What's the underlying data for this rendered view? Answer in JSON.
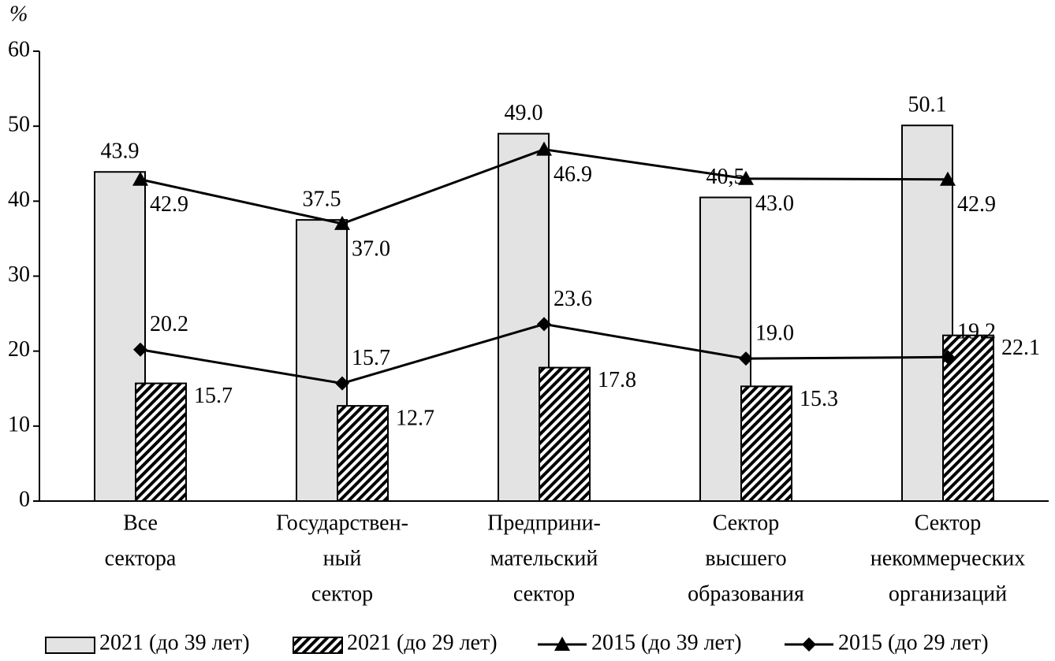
{
  "chart_data": {
    "type": "bar",
    "y_label": "%",
    "categories": [
      [
        "Все",
        "сектора"
      ],
      [
        "Государствен-",
        "ный",
        "сектор"
      ],
      [
        "Предприни-",
        "мательский",
        "сектор"
      ],
      [
        "Сектор",
        "высшего",
        "образования"
      ],
      [
        "Сектор",
        "некоммерческих",
        "организаций"
      ]
    ],
    "ylim": [
      0,
      60
    ],
    "yticks": [
      0,
      10,
      20,
      30,
      40,
      50,
      60
    ],
    "series": [
      {
        "name": "2021 (до 39 лет)",
        "type": "bar",
        "color": "#e3e3e3",
        "values": [
          43.9,
          37.5,
          49.0,
          40.5,
          50.1
        ],
        "value_labels": [
          "43.9",
          "37.5",
          "49.0",
          "40,5",
          "50.1"
        ]
      },
      {
        "name": "2021 (до 29 лет)",
        "type": "bar",
        "color": "#000000",
        "pattern": "hatch",
        "values": [
          15.7,
          12.7,
          17.8,
          15.3,
          22.1
        ],
        "value_labels": [
          "15.7",
          "12.7",
          "17.8",
          "15.3",
          "22.1"
        ]
      },
      {
        "name": "2015 (до 39 лет)",
        "type": "line",
        "marker": "triangle",
        "color": "#000000",
        "values": [
          42.9,
          37.0,
          46.9,
          43.0,
          42.9
        ],
        "value_labels": [
          "42.9",
          "37.0",
          "46.9",
          "43.0",
          "42.9"
        ]
      },
      {
        "name": "2015 (до 29 лет)",
        "type": "line",
        "marker": "diamond",
        "color": "#000000",
        "values": [
          20.2,
          15.7,
          23.6,
          19.0,
          19.2
        ],
        "value_labels": [
          "20.2",
          "15.7",
          "23.6",
          "19.0",
          "19.2"
        ]
      }
    ]
  }
}
